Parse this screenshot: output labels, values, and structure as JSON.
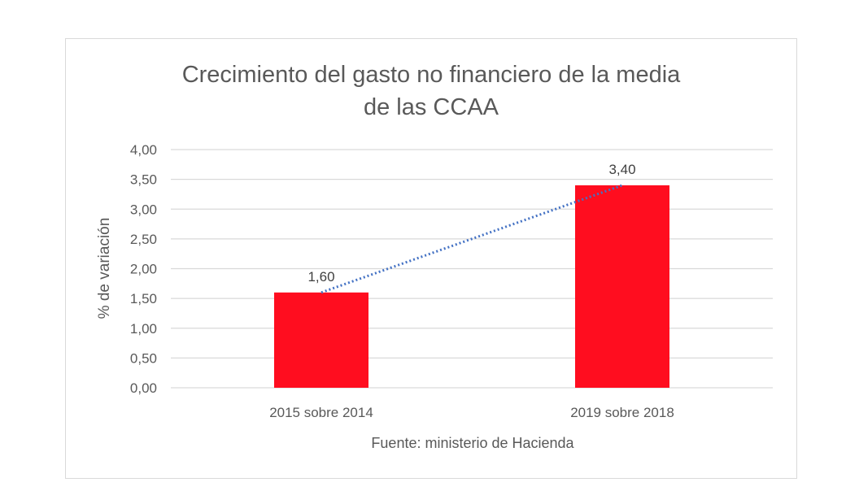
{
  "chart_data": {
    "type": "bar",
    "title": "Crecimiento del gasto no financiero de la media de las CCAA",
    "title_lines": [
      "Crecimiento del gasto no financiero de la media",
      "de las CCAA"
    ],
    "xlabel": "Fuente: ministerio de Hacienda",
    "ylabel": "% de variación",
    "categories": [
      "2015 sobre 2014",
      "2019 sobre 2018"
    ],
    "values": [
      1.6,
      3.4
    ],
    "data_labels": [
      "1,60",
      "3,40"
    ],
    "ylim": [
      0,
      4
    ],
    "yticks": [
      "0,00",
      "0,50",
      "1,00",
      "1,50",
      "2,00",
      "2,50",
      "3,00",
      "3,50",
      "4,00"
    ],
    "grid": true,
    "trendline": {
      "type": "linear",
      "style": "dotted",
      "color": "#4472c4"
    },
    "colors": {
      "bar": "#ff0d1f",
      "grid": "#d9d9d9",
      "text": "#595959"
    }
  }
}
